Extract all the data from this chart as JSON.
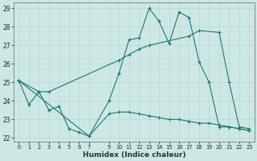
{
  "xlabel": "Humidex (Indice chaleur)",
  "background_color": "#cde8e4",
  "grid_color": "#b8d8d4",
  "line_color": "#1a7a6e",
  "xlim": [
    -0.5,
    23.5
  ],
  "ylim": [
    21.8,
    29.3
  ],
  "yticks": [
    22,
    23,
    24,
    25,
    26,
    27,
    28,
    29
  ],
  "xticks": [
    0,
    1,
    2,
    3,
    4,
    5,
    6,
    7,
    9,
    10,
    11,
    12,
    13,
    14,
    15,
    16,
    17,
    18,
    19,
    20,
    21,
    22,
    23
  ],
  "line1_x": [
    0,
    1,
    2,
    3,
    4,
    5,
    6,
    7,
    9,
    10,
    11,
    12,
    13,
    14,
    15,
    16,
    17,
    18,
    19,
    20,
    21,
    22,
    23
  ],
  "line1_y": [
    25.1,
    23.8,
    24.5,
    23.5,
    23.7,
    22.5,
    22.3,
    22.1,
    24.0,
    25.5,
    27.3,
    27.4,
    29.0,
    28.3,
    27.1,
    28.8,
    28.5,
    26.1,
    25.0,
    22.6,
    22.6,
    22.5,
    22.4
  ],
  "line2_x": [
    0,
    2,
    3,
    10,
    11,
    12,
    13,
    17,
    18,
    20,
    21,
    22,
    23
  ],
  "line2_y": [
    25.1,
    24.5,
    24.5,
    26.2,
    26.5,
    26.8,
    27.0,
    27.5,
    27.8,
    27.7,
    25.0,
    22.6,
    22.5
  ],
  "line3_x": [
    0,
    7,
    9,
    10,
    11,
    12,
    13,
    14,
    15,
    16,
    17,
    18,
    19,
    20,
    21,
    22,
    23
  ],
  "line3_y": [
    25.1,
    22.1,
    23.3,
    23.4,
    23.4,
    23.3,
    23.2,
    23.1,
    23.0,
    23.0,
    22.9,
    22.8,
    22.8,
    22.7,
    22.6,
    22.5,
    22.4
  ]
}
